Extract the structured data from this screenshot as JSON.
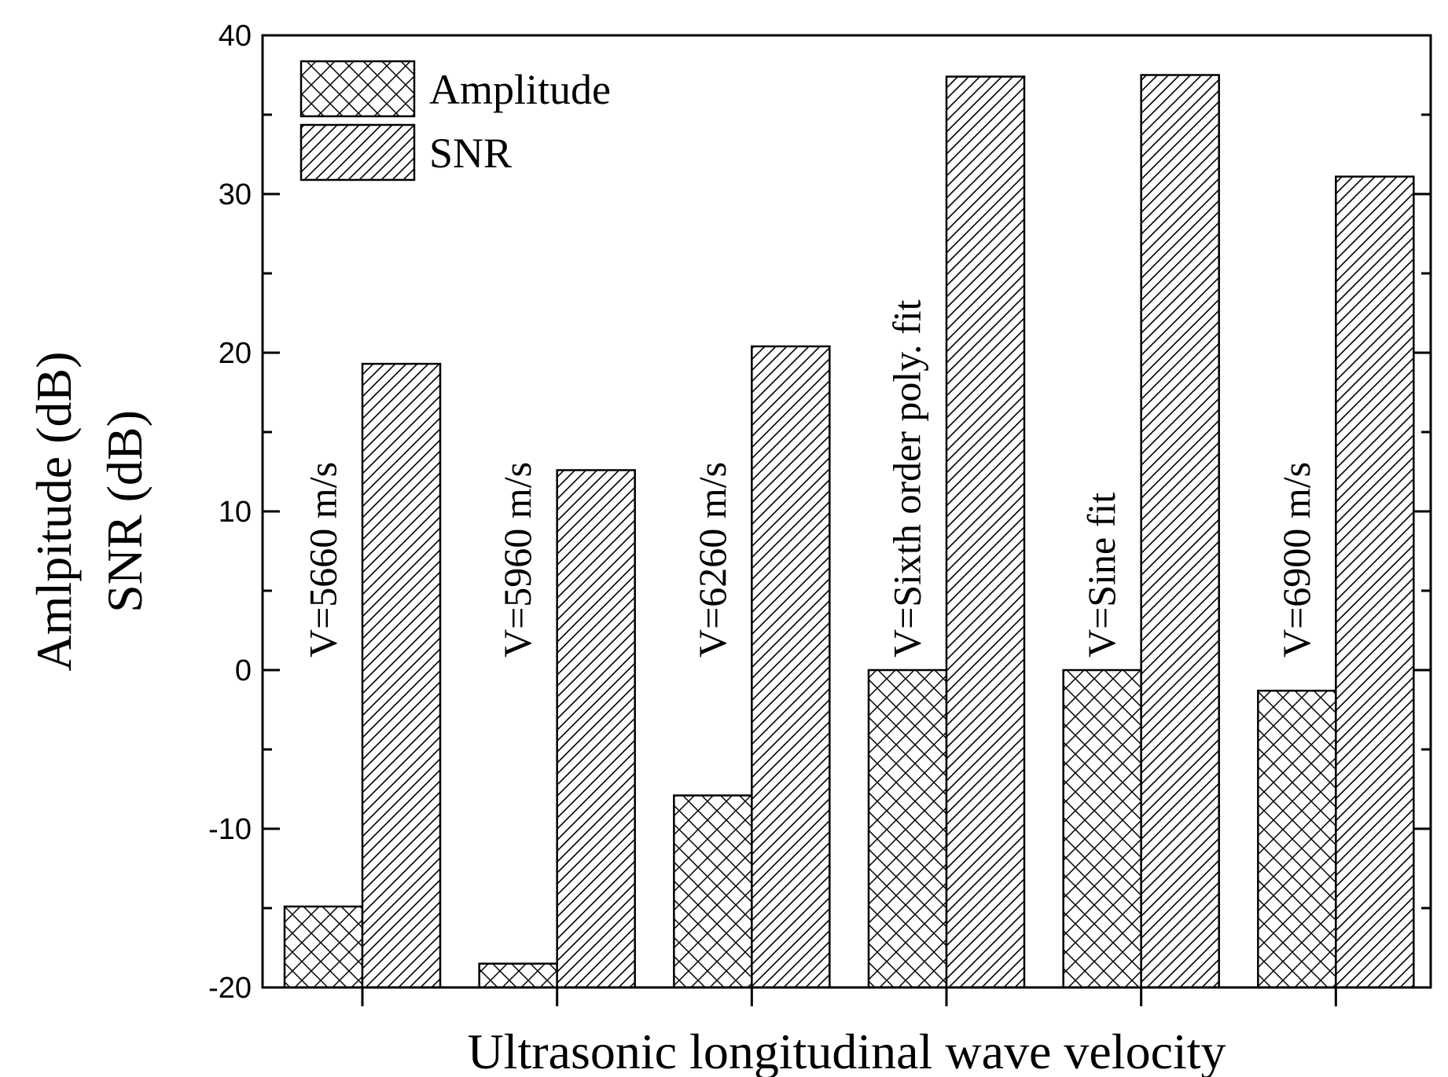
{
  "chart_data": {
    "type": "bar",
    "title": "",
    "xlabel": "Ultrasonic longitudinal wave velocity",
    "ylabel_lines": [
      "Amlpitude (dB)",
      "SNR (dB)"
    ],
    "ylim": [
      -20,
      40
    ],
    "yticks": [
      -20,
      -10,
      0,
      10,
      20,
      30,
      40
    ],
    "categories": [
      "V=5660 m/s",
      "V=5960 m/s",
      "V=6260 m/s",
      "V=Sixth order poly. fit",
      "V=Sine fit",
      "V=6900 m/s"
    ],
    "series": [
      {
        "name": "Amplitude",
        "pattern": "crosshatch",
        "values": [
          -14.9,
          -18.5,
          -7.9,
          0.0,
          0.0,
          -1.3
        ]
      },
      {
        "name": "SNR",
        "pattern": "diagonal",
        "values": [
          19.3,
          12.6,
          20.4,
          37.4,
          37.5,
          31.1
        ]
      }
    ],
    "legend_position": "top-left",
    "grid": false
  }
}
